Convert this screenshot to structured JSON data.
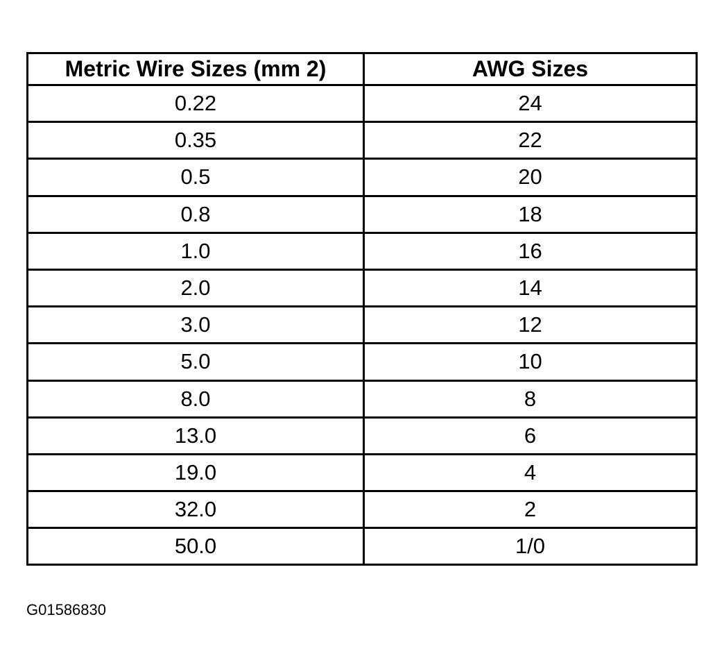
{
  "table": {
    "header": [
      "Metric Wire Sizes (mm 2)",
      "AWG Sizes"
    ],
    "rows": [
      [
        "0.22",
        "24"
      ],
      [
        "0.35",
        "22"
      ],
      [
        "0.5",
        "20"
      ],
      [
        "0.8",
        "18"
      ],
      [
        "1.0",
        "16"
      ],
      [
        "2.0",
        "14"
      ],
      [
        "3.0",
        "12"
      ],
      [
        "5.0",
        "10"
      ],
      [
        "8.0",
        "8"
      ],
      [
        "13.0",
        "6"
      ],
      [
        "19.0",
        "4"
      ],
      [
        "32.0",
        "2"
      ],
      [
        "50.0",
        "1/0"
      ]
    ]
  },
  "caption": "G01586830"
}
